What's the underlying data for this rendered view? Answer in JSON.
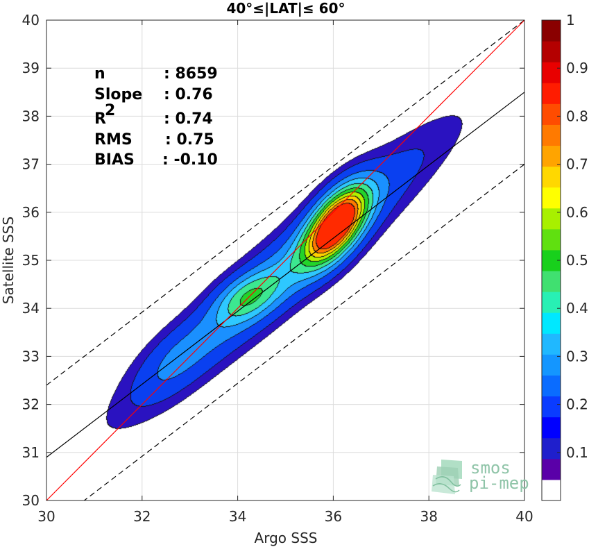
{
  "chart_data": {
    "type": "contour",
    "title": "40°≤|LAT|≤ 60°",
    "xlabel": "Argo SSS",
    "ylabel": "Satellite SSS",
    "xlim": [
      30,
      40
    ],
    "ylim": [
      30,
      40
    ],
    "x_ticks": [
      "30",
      "32",
      "34",
      "36",
      "38",
      "40"
    ],
    "y_ticks": [
      "30",
      "31",
      "32",
      "33",
      "34",
      "35",
      "36",
      "37",
      "38",
      "39",
      "40"
    ],
    "grid": true,
    "stats": [
      {
        "key": "n",
        "value": ": 8659"
      },
      {
        "key": "Slope",
        "value": ": 0.76"
      },
      {
        "key": "R",
        "sup": "2",
        "value": ": 0.74"
      },
      {
        "key": "RMS",
        "value": ": 0.75"
      },
      {
        "key": "BIAS",
        "value": ": -0.10"
      }
    ],
    "lines": {
      "one_to_one": {
        "slope": 1,
        "intercept": 0,
        "color": "#ff0000"
      },
      "fit": {
        "slope": 0.76,
        "intercept": 8.1,
        "color": "#000000"
      },
      "fit_bounds_offset": 1.5
    },
    "colorbar": {
      "ticks": [
        "0.1",
        "0.2",
        "0.3",
        "0.4",
        "0.5",
        "0.6",
        "0.7",
        "0.8",
        "0.9",
        "1"
      ],
      "tick_values": [
        0.1,
        0.2,
        0.3,
        0.4,
        0.5,
        0.6,
        0.7,
        0.8,
        0.9,
        1.0
      ],
      "range": [
        0,
        1
      ],
      "colors": [
        "#ffffff",
        "#5a00a8",
        "#1f1fcc",
        "#0000ff",
        "#0a3cff",
        "#0a6cff",
        "#1496ff",
        "#20b8ff",
        "#00e8ff",
        "#28f0b4",
        "#40e070",
        "#18d01c",
        "#60e010",
        "#a8f000",
        "#ffff00",
        "#ffd800",
        "#ffa400",
        "#ff7a00",
        "#ff4c00",
        "#ff1c00",
        "#e80000",
        "#b40000",
        "#8a0000"
      ]
    },
    "density_levels": [
      0.05,
      0.1,
      0.2,
      0.3,
      0.4,
      0.5,
      0.6,
      0.7,
      0.8,
      0.9
    ],
    "density_colors": [
      "#2a12c0",
      "#0a40f0",
      "#1a90ff",
      "#2ec8ff",
      "#3ce890",
      "#22d42a",
      "#b4f000",
      "#ffd000",
      "#ff7a00",
      "#ff2a00",
      "#c00000"
    ],
    "density_components": [
      {
        "cx": 35.0,
        "cy": 34.8,
        "sa": 2.55,
        "sb": 0.42,
        "ang": 41,
        "w": 0.3
      },
      {
        "cx": 36.05,
        "cy": 35.75,
        "sa": 0.62,
        "sb": 0.3,
        "ang": 55,
        "w": 1.0
      },
      {
        "cx": 34.2,
        "cy": 34.25,
        "sa": 0.5,
        "sb": 0.28,
        "ang": 30,
        "w": 0.26
      },
      {
        "cx": 32.6,
        "cy": 32.9,
        "sa": 0.7,
        "sb": 0.35,
        "ang": 45,
        "w": 0.1
      }
    ],
    "logo": {
      "line1": "smos",
      "line2": "pi-mep"
    }
  }
}
